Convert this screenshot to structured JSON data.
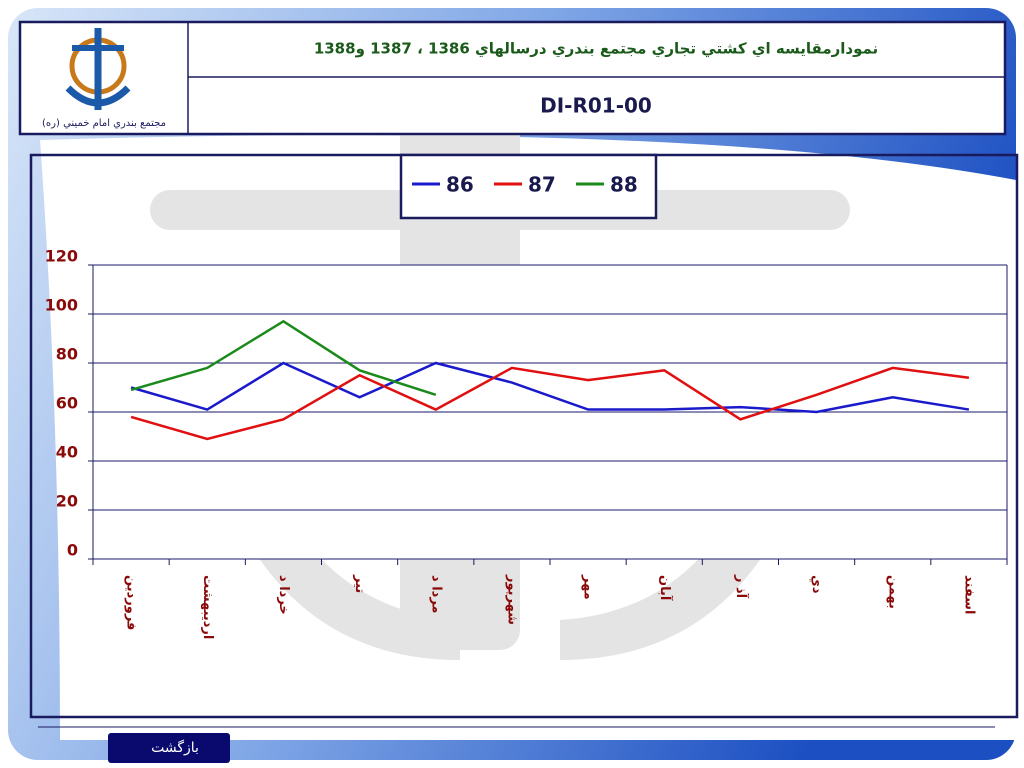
{
  "header": {
    "title": "نمودارمقايسه اي كشتي تجاري مجتمع بندري درسالهاي 1386 ، 1387 و1388",
    "code": "DI-R01-00",
    "logo_caption": "مجتمع بندري امام خميني (ره)"
  },
  "chart_data": {
    "type": "line",
    "categories": [
      "فروردين",
      "ارديبهشت",
      "خردا د",
      "تير",
      "مردا د",
      "شهريور",
      "مهر",
      "آبان",
      "آذ ر",
      "دي",
      "بهمن",
      "اسفند"
    ],
    "series": [
      {
        "name": "86",
        "color": "#1a1acc",
        "values": [
          70,
          61,
          80,
          66,
          80,
          72,
          61,
          61,
          62,
          60,
          66,
          61
        ]
      },
      {
        "name": "87",
        "color": "#e01010",
        "values": [
          58,
          49,
          57,
          75,
          61,
          78,
          73,
          77,
          57,
          67,
          78,
          74
        ]
      },
      {
        "name": "88",
        "color": "#1a8a1a",
        "values": [
          69,
          78,
          97,
          77,
          67,
          null,
          null,
          null,
          null,
          null,
          null,
          null
        ]
      }
    ],
    "ylim": [
      0,
      120
    ],
    "yticks": [
      0,
      20,
      40,
      60,
      80,
      100,
      120
    ],
    "grid": true,
    "legend": "top"
  },
  "footer": {
    "back_button": "بازگشت"
  }
}
